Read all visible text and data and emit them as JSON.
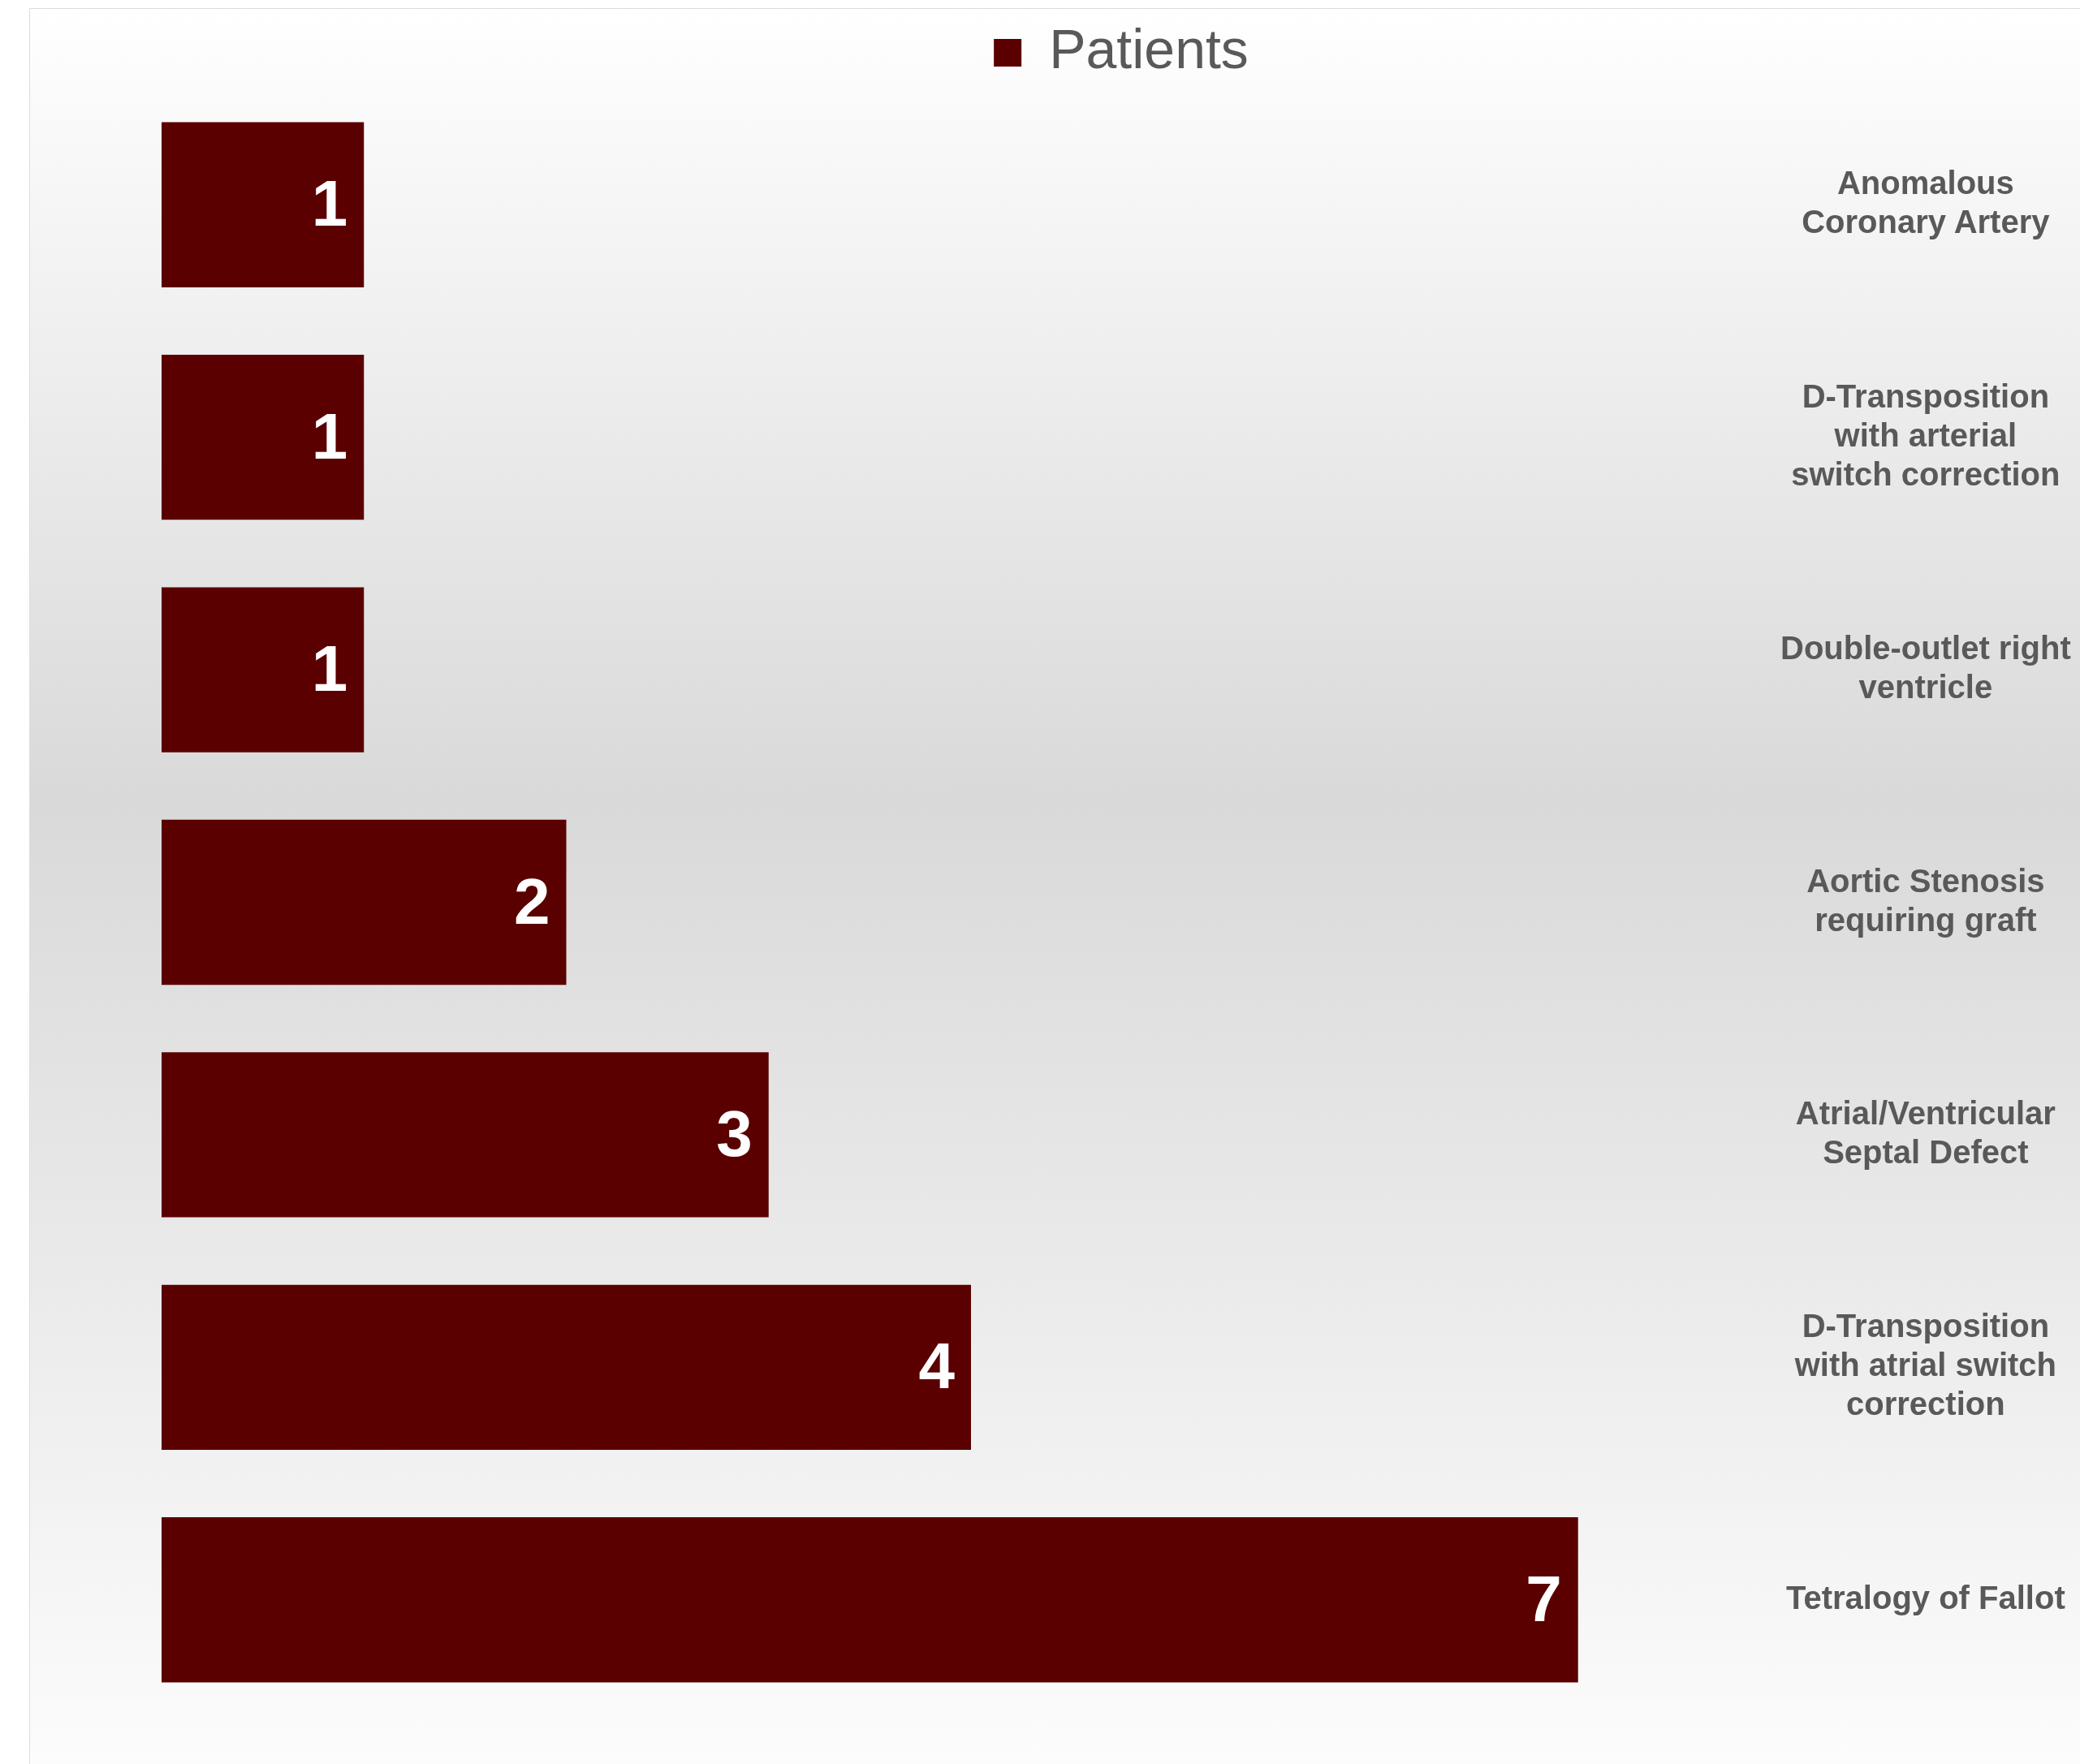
{
  "chart_data": {
    "type": "bar",
    "orientation": "horizontal",
    "categories": [
      "Anomalous Coronary Artery",
      "D-Transposition with arterial switch correction",
      "Double-outlet right ventricle",
      "Aortic Stenosis requiring graft",
      "Atrial/Ventricular Septal Defect",
      "D-Transposition with atrial switch correction",
      "Tetralogy of Fallot"
    ],
    "series": [
      {
        "name": "Patients",
        "color": "#5a0000",
        "values": [
          1,
          1,
          1,
          2,
          3,
          4,
          7
        ]
      }
    ],
    "tick_labels": "y",
    "data_labels": true,
    "legend": "top"
  }
}
